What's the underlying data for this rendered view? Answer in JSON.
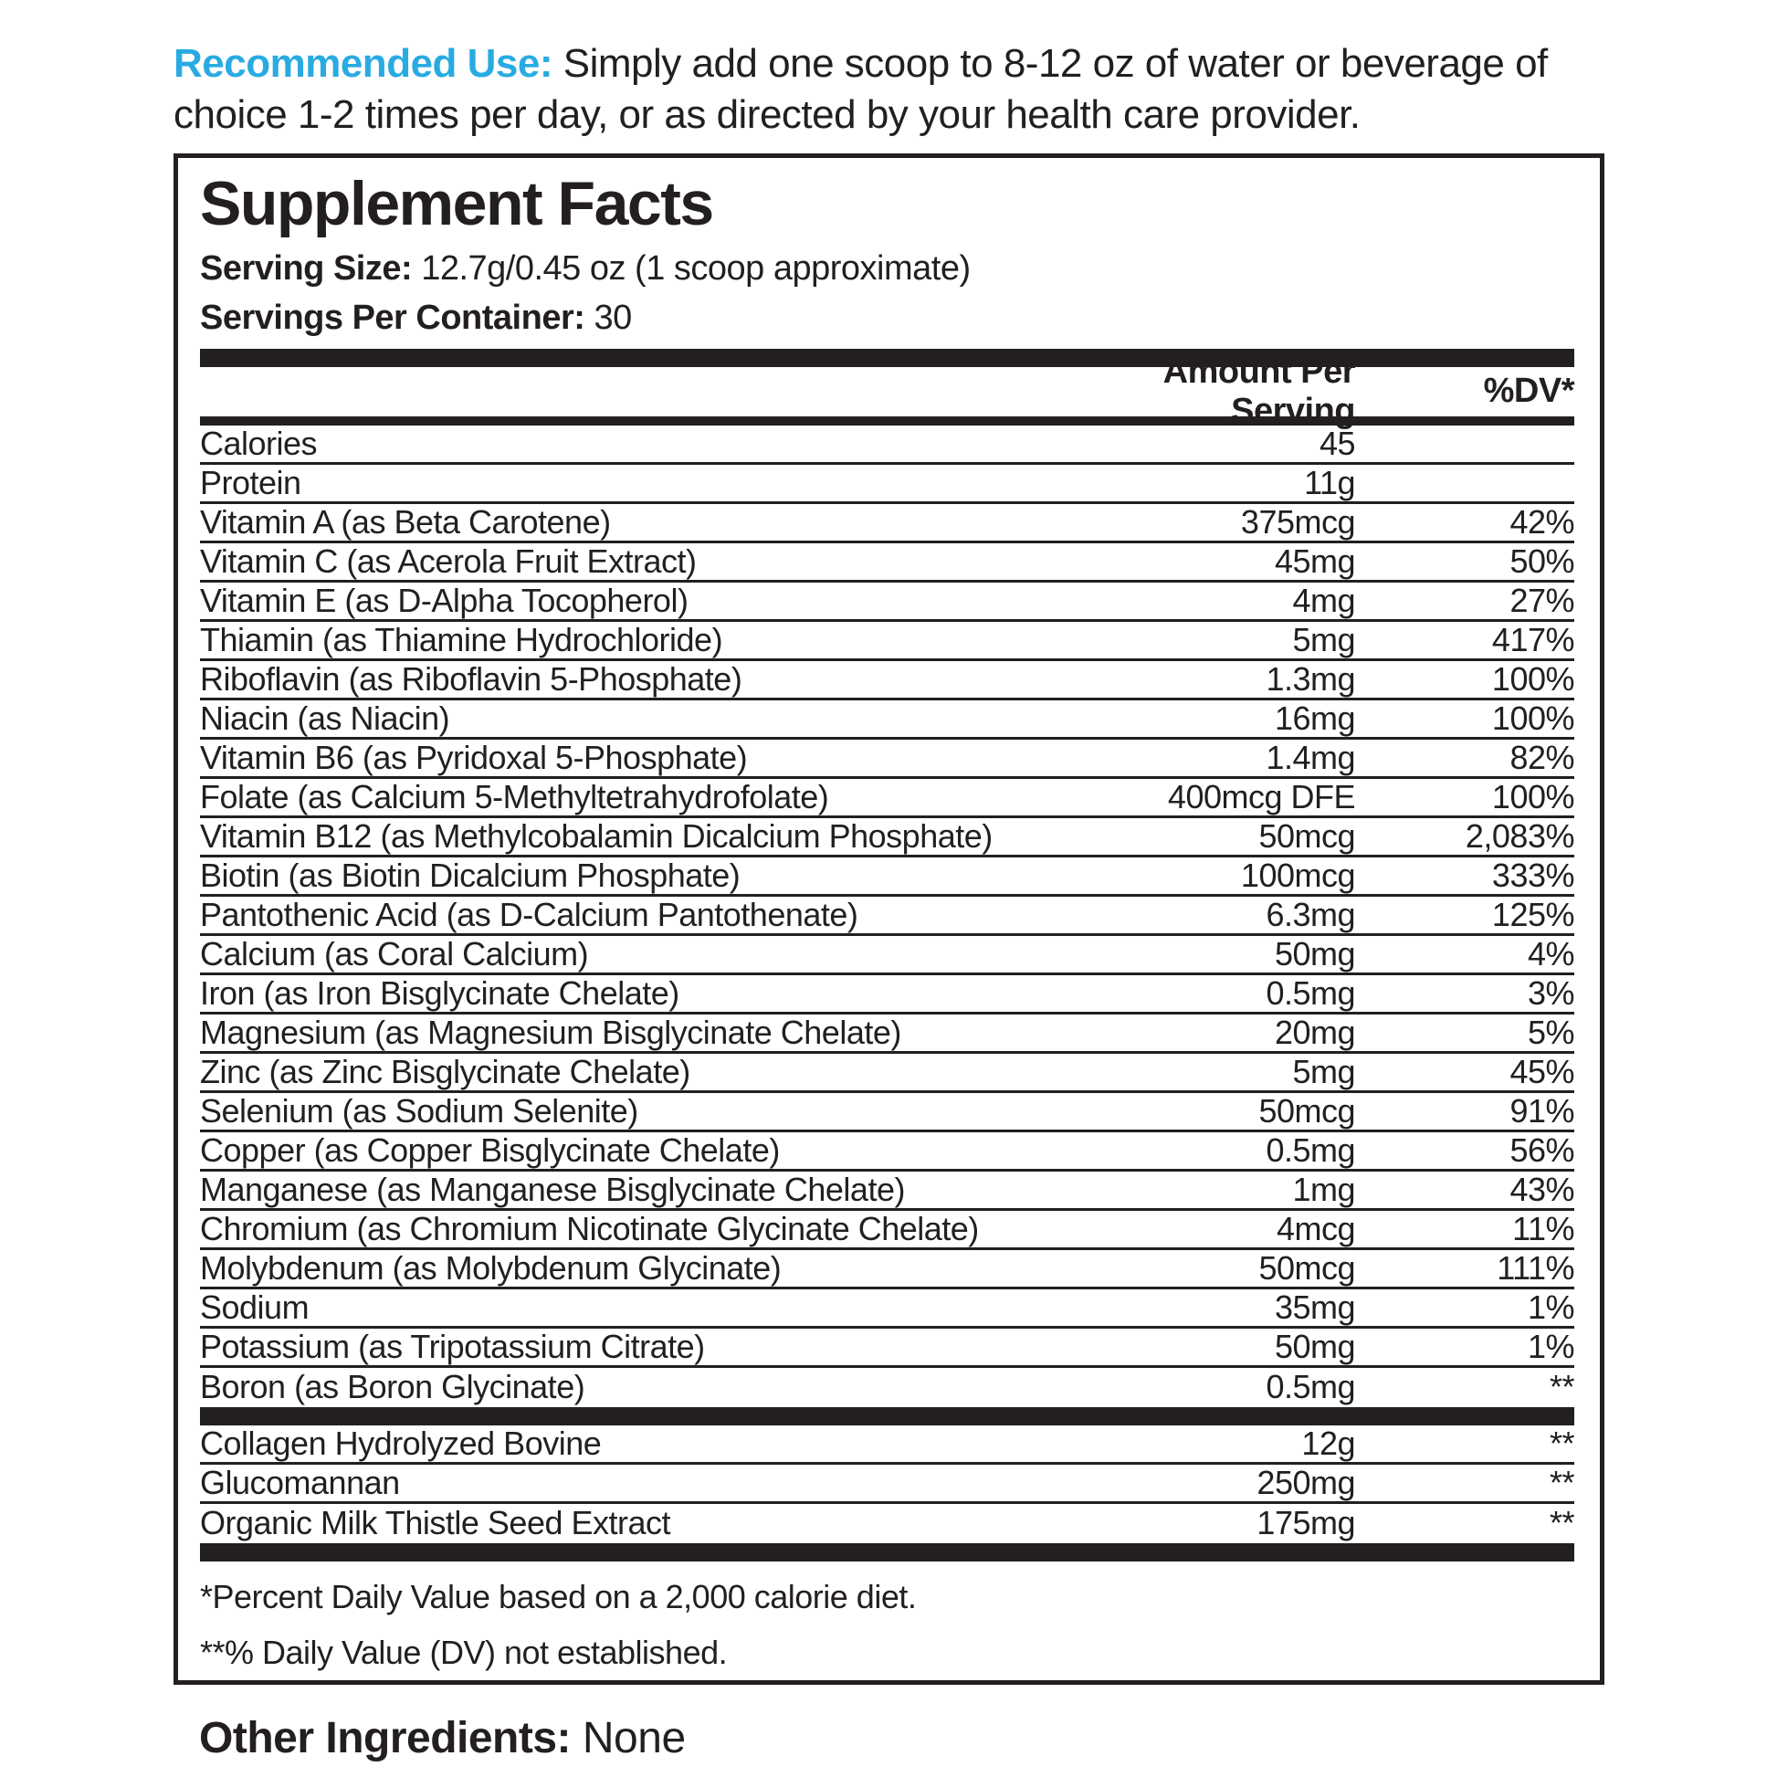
{
  "colors": {
    "accent_blue": "#29abe2",
    "ink": "#231f20"
  },
  "recommended_use": {
    "label": "Recommended Use:",
    "text": " Simply add one scoop to 8-12 oz of water or beverage of choice 1-2 times per day, or as directed by your health care provider."
  },
  "panel": {
    "title": "Supplement Facts",
    "serving_size_label": "Serving Size:",
    "serving_size_value": " 12.7g/0.45 oz (1 scoop approximate)",
    "servings_label": "Servings Per Container:",
    "servings_value": " 30",
    "columns": {
      "amount": "Amount Per Serving",
      "dv": "%DV*"
    },
    "rows": [
      {
        "name": "Calories",
        "amount": "45",
        "dv": ""
      },
      {
        "name": "Protein",
        "amount": "11g",
        "dv": ""
      },
      {
        "name": "Vitamin A (as Beta Carotene)",
        "amount": "375mcg",
        "dv": "42%"
      },
      {
        "name": "Vitamin C (as Acerola Fruit Extract)",
        "amount": "45mg",
        "dv": "50%"
      },
      {
        "name": "Vitamin E (as D-Alpha Tocopherol)",
        "amount": "4mg",
        "dv": "27%"
      },
      {
        "name": "Thiamin (as Thiamine Hydrochloride)",
        "amount": "5mg",
        "dv": "417%"
      },
      {
        "name": "Riboflavin (as Riboflavin 5-Phosphate)",
        "amount": "1.3mg",
        "dv": "100%"
      },
      {
        "name": "Niacin (as Niacin)",
        "amount": "16mg",
        "dv": "100%"
      },
      {
        "name": "Vitamin B6 (as Pyridoxal 5-Phosphate)",
        "amount": "1.4mg",
        "dv": "82%"
      },
      {
        "name": "Folate (as Calcium 5-Methyltetrahydrofolate)",
        "amount": "400mcg DFE",
        "dv": "100%"
      },
      {
        "name": "Vitamin B12 (as Methylcobalamin Dicalcium Phosphate)",
        "amount": "50mcg",
        "dv": "2,083%"
      },
      {
        "name": "Biotin (as Biotin Dicalcium Phosphate)",
        "amount": "100mcg",
        "dv": "333%"
      },
      {
        "name": "Pantothenic Acid (as D-Calcium Pantothenate)",
        "amount": "6.3mg",
        "dv": "125%"
      },
      {
        "name": "Calcium (as Coral Calcium)",
        "amount": "50mg",
        "dv": "4%"
      },
      {
        "name": "Iron (as Iron Bisglycinate Chelate)",
        "amount": "0.5mg",
        "dv": "3%"
      },
      {
        "name": "Magnesium (as Magnesium Bisglycinate Chelate)",
        "amount": "20mg",
        "dv": "5%"
      },
      {
        "name": "Zinc (as Zinc Bisglycinate Chelate)",
        "amount": "5mg",
        "dv": "45%"
      },
      {
        "name": "Selenium (as Sodium Selenite)",
        "amount": "50mcg",
        "dv": "91%"
      },
      {
        "name": "Copper (as Copper Bisglycinate Chelate)",
        "amount": "0.5mg",
        "dv": "56%"
      },
      {
        "name": "Manganese (as Manganese Bisglycinate Chelate)",
        "amount": "1mg",
        "dv": "43%"
      },
      {
        "name": "Chromium (as Chromium Nicotinate Glycinate Chelate)",
        "amount": "4mcg",
        "dv": "11%"
      },
      {
        "name": "Molybdenum (as Molybdenum Glycinate)",
        "amount": "50mcg",
        "dv": "111%"
      },
      {
        "name": "Sodium",
        "amount": "35mg",
        "dv": "1%"
      },
      {
        "name": "Potassium (as Tripotassium Citrate)",
        "amount": "50mg",
        "dv": "1%"
      },
      {
        "name": "Boron (as Boron Glycinate)",
        "amount": "0.5mg",
        "dv": "**"
      }
    ],
    "blend_rows": [
      {
        "name": "Collagen Hydrolyzed Bovine",
        "amount": "12g",
        "dv": "**"
      },
      {
        "name": "Glucomannan",
        "amount": "250mg",
        "dv": "**"
      },
      {
        "name": "Organic Milk Thistle Seed Extract",
        "amount": "175mg",
        "dv": "**"
      }
    ],
    "footnotes": [
      "*Percent Daily Value based on a 2,000 calorie diet.",
      "**% Daily Value (DV) not established."
    ]
  },
  "other_ingredients": {
    "label": "Other Ingredients:",
    "value": " None"
  }
}
